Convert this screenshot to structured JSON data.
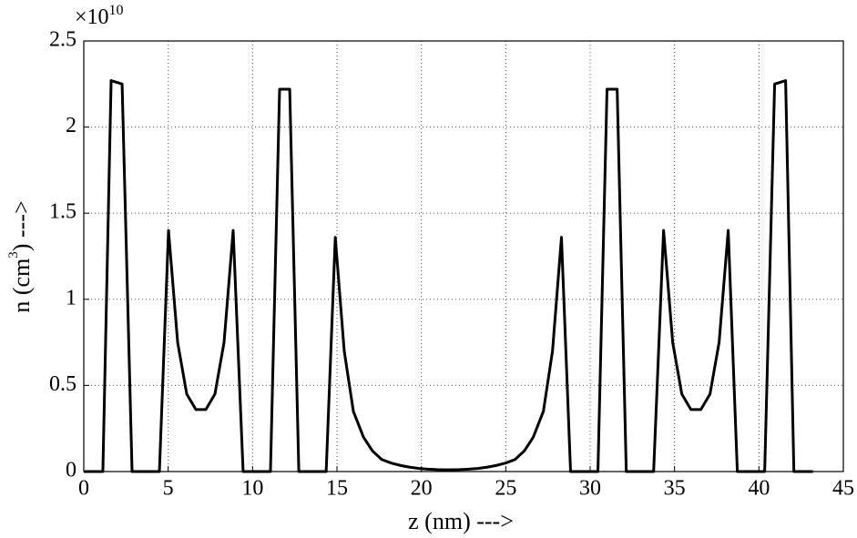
{
  "chart_data": {
    "type": "line",
    "xlabel": "z (nm) --->",
    "ylabel_parts": [
      "n (cm",
      "3",
      ") --->"
    ],
    "y_scale_label": "×10",
    "y_scale_exponent": "10",
    "xlim": [
      0,
      45
    ],
    "xticks": [
      0,
      5,
      10,
      15,
      20,
      25,
      30,
      35,
      40,
      45
    ],
    "ylim": [
      0,
      2.5
    ],
    "yticks": [
      0,
      0.5,
      1,
      1.5,
      2,
      2.5
    ],
    "grid": true,
    "series": [
      {
        "color": "#000000",
        "x": [
          0,
          1.13,
          1.62,
          2.27,
          2.86,
          4.48,
          5.02,
          5.56,
          6.1,
          6.64,
          7.23,
          7.77,
          8.31,
          8.85,
          9.44,
          11.06,
          11.6,
          12.2,
          12.74,
          14.36,
          14.9,
          15.43,
          15.97,
          16.57,
          17.1,
          17.65,
          18.19,
          18.78,
          19.32,
          19.86,
          20.4,
          20.94,
          21.48,
          22.26,
          22.8,
          23.34,
          23.88,
          24.42,
          25.01,
          25.55,
          26.1,
          26.63,
          27.23,
          27.77,
          28.3,
          28.84,
          30.46,
          31.0,
          31.6,
          32.14,
          33.76,
          34.35,
          34.89,
          35.43,
          35.97,
          36.56,
          37.1,
          37.64,
          38.18,
          38.72,
          40.34,
          40.93,
          41.58,
          42.07,
          43.2
        ],
        "values": [
          0,
          0,
          2.27,
          2.25,
          0,
          0,
          1.4,
          0.75,
          0.45,
          0.36,
          0.36,
          0.45,
          0.75,
          1.4,
          0,
          0,
          2.22,
          2.22,
          0,
          0,
          1.36,
          0.7,
          0.35,
          0.2,
          0.12,
          0.07,
          0.05,
          0.035,
          0.025,
          0.018,
          0.014,
          0.011,
          0.01,
          0.011,
          0.014,
          0.018,
          0.025,
          0.035,
          0.05,
          0.07,
          0.12,
          0.2,
          0.35,
          0.7,
          1.36,
          0,
          0,
          2.22,
          2.22,
          0,
          0,
          1.4,
          0.75,
          0.45,
          0.36,
          0.36,
          0.45,
          0.75,
          1.4,
          0,
          0,
          2.25,
          2.27,
          0,
          0
        ]
      }
    ]
  }
}
